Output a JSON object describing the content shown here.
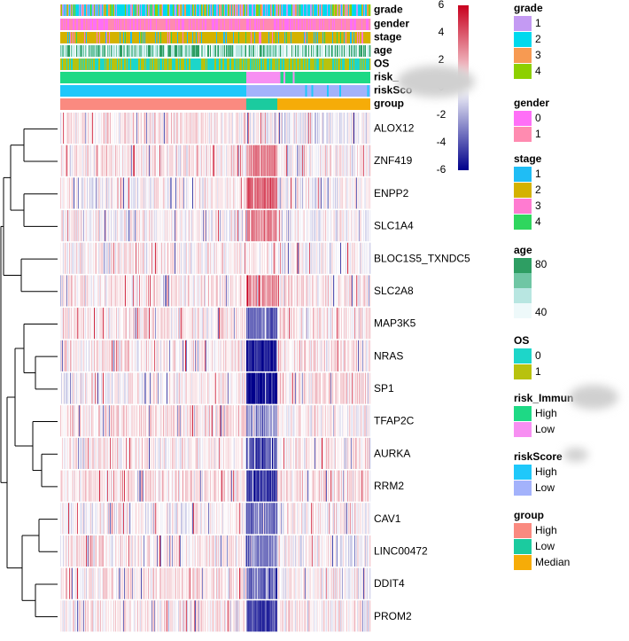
{
  "chart_data": {
    "type": "heatmap",
    "annotation_tracks": [
      {
        "name": "grade",
        "pattern": "mixed",
        "legend": [
          {
            "label": "1",
            "color": "#C49AF3"
          },
          {
            "label": "2",
            "color": "#00D9EE"
          },
          {
            "label": "3",
            "color": "#F79A52"
          },
          {
            "label": "4",
            "color": "#8DD000"
          }
        ]
      },
      {
        "name": "gender",
        "pattern": "mixed",
        "legend": [
          {
            "label": "0",
            "color": "#FF6FF7"
          },
          {
            "label": "1",
            "color": "#FF8BB0"
          }
        ]
      },
      {
        "name": "stage",
        "pattern": "mixed",
        "legend": [
          {
            "label": "1",
            "color": "#1FBDF5"
          },
          {
            "label": "2",
            "color": "#D4B200"
          },
          {
            "label": "3",
            "color": "#FF7BD1"
          },
          {
            "label": "4",
            "color": "#2FD65E"
          }
        ]
      },
      {
        "name": "age",
        "pattern": "gradient",
        "legend_ticks": [
          "80",
          "40"
        ],
        "legend_colors": [
          "#2E9E63",
          "#6FC6A4",
          "#B8E6E1",
          "#EEF9FA"
        ]
      },
      {
        "name": "OS",
        "pattern": "mixed",
        "legend": [
          {
            "label": "0",
            "color": "#1DD6C9"
          },
          {
            "label": "1",
            "color": "#B8C20E"
          }
        ]
      },
      {
        "name": "risk_Immune",
        "display_label": "risk_",
        "legend_title": "risk_Immun",
        "pattern": "blocks",
        "blocks": [
          [
            "High",
            0.6
          ],
          [
            "Low",
            0.11
          ],
          [
            "High",
            0.29
          ]
        ],
        "legend": [
          {
            "label": "High",
            "color": "#1ED985"
          },
          {
            "label": "Low",
            "color": "#F78FF2"
          }
        ]
      },
      {
        "name": "riskScore",
        "display_label": "riskSco",
        "legend_title": "riskScore",
        "pattern": "blocks",
        "blocks": [
          [
            "High",
            0.6
          ],
          [
            "Low",
            0.4
          ]
        ],
        "legend": [
          {
            "label": "High",
            "color": "#1FC8FA"
          },
          {
            "label": "Low",
            "color": "#A3B2FB"
          }
        ]
      },
      {
        "name": "group",
        "pattern": "blocks",
        "blocks": [
          [
            "High",
            0.6
          ],
          [
            "Low",
            0.1
          ],
          [
            "Median",
            0.3
          ]
        ],
        "legend": [
          {
            "label": "High",
            "color": "#FA8A80"
          },
          {
            "label": "Low",
            "color": "#1BCB9F"
          },
          {
            "label": "Median",
            "color": "#F6AC08"
          }
        ]
      }
    ],
    "genes": [
      "ALOX12",
      "ZNF419",
      "ENPP2",
      "SLC1A4",
      "BLOC1S5_TXNDC5",
      "SLC2A8",
      "MAP3K5",
      "NRAS",
      "SP1",
      "TFAP2C",
      "AURKA",
      "RRM2",
      "CAV1",
      "LINC00472",
      "DDIT4",
      "PROM2"
    ],
    "row_effects": {
      "High": [
        0.25,
        0.25,
        0.1,
        0.1,
        0.15,
        0.2,
        0.25,
        0.2,
        0.1,
        0.35,
        0.15,
        0.3,
        0.05,
        0.2,
        0.25,
        0.2
      ],
      "Low": [
        -0.05,
        1.2,
        1.6,
        1.2,
        0.15,
        1.1,
        -1.6,
        -2.4,
        -2.6,
        -1.0,
        -1.8,
        -2.2,
        -1.5,
        -1.3,
        -1.4,
        -2.0
      ],
      "Median": [
        -0.1,
        0.1,
        0.0,
        0.0,
        0.0,
        0.2,
        0.2,
        0.25,
        0.3,
        0.15,
        0.2,
        0.3,
        0.1,
        0.05,
        0.05,
        0.2
      ]
    },
    "color_scale": {
      "min": -6,
      "max": 6,
      "ticks": [
        "6",
        "4",
        "2",
        "0",
        "-2",
        "-4",
        "-6"
      ],
      "colors": [
        "#00008B",
        "#FFFFFF",
        "#C8001E"
      ]
    },
    "dendrogram": "left, rows",
    "n_samples": 350
  }
}
